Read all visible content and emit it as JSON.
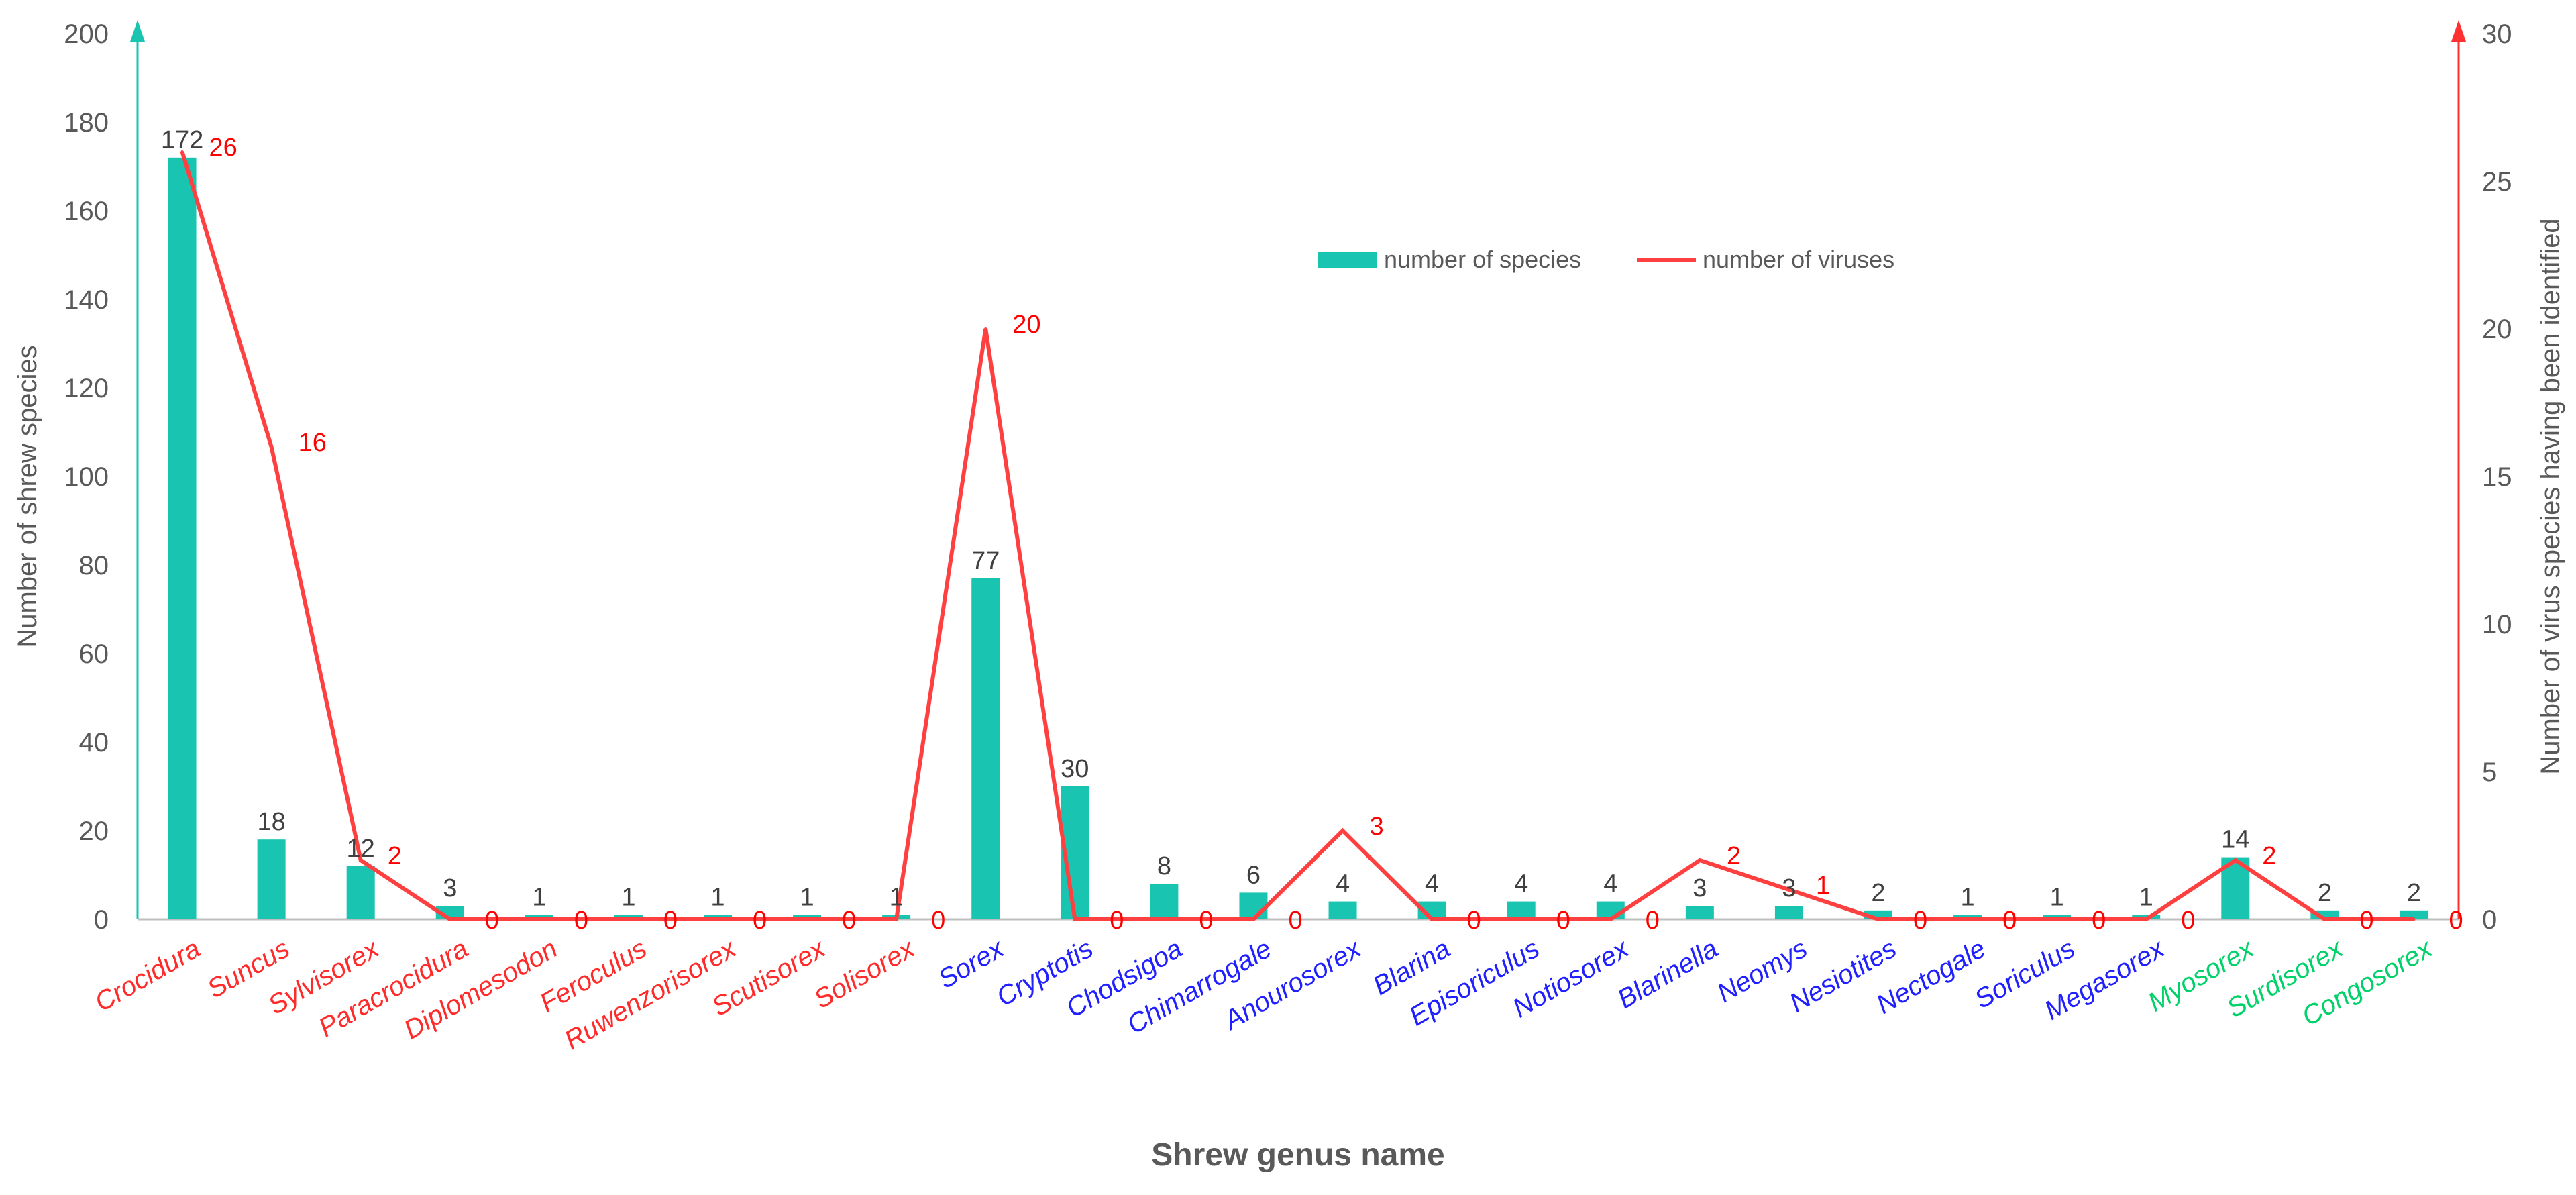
{
  "chart_data": {
    "type": "bar",
    "xlabel": "Shrew genus name",
    "ylabel": "Number of shrew species",
    "y2label": "Number of virus species having been identified",
    "ylim": [
      0,
      200
    ],
    "y2lim": [
      0,
      30
    ],
    "yticks": [
      "0",
      "20",
      "40",
      "60",
      "80",
      "100",
      "120",
      "140",
      "160",
      "180",
      "200"
    ],
    "y2ticks": [
      "0",
      "5",
      "10",
      "15",
      "20",
      "25",
      "30"
    ],
    "legend_position": "top-center",
    "colors": {
      "bars": "#19c4b0",
      "line": "#ff4040",
      "group1": "#ff2b2b",
      "group2": "#1f1fff",
      "group3": "#00d26a"
    },
    "categories": [
      "Crocidura",
      "Suncus",
      "Sylvisorex",
      "Paracrocidura",
      "Diplomesodon",
      "Feroculus",
      "Ruwenzorisorex",
      "Scutisorex",
      "Solisorex",
      "Sorex",
      "Cryptotis",
      "Chodsigoa",
      "Chimarrogale",
      "Anourosorex",
      "Blarina",
      "Episoriculus",
      "Notiosorex",
      "Blarinella",
      "Neomys",
      "Nesiotites",
      "Nectogale",
      "Soriculus",
      "Megasorex",
      "Myosorex",
      "Surdisorex",
      "Congosorex"
    ],
    "category_groups": [
      1,
      1,
      1,
      1,
      1,
      1,
      1,
      1,
      1,
      2,
      2,
      2,
      2,
      2,
      2,
      2,
      2,
      2,
      2,
      2,
      2,
      2,
      2,
      3,
      3,
      3
    ],
    "series": [
      {
        "name": "number of species",
        "type": "bar",
        "axis": "left",
        "values": [
          172,
          18,
          12,
          3,
          1,
          1,
          1,
          1,
          1,
          77,
          30,
          8,
          6,
          4,
          4,
          4,
          4,
          3,
          3,
          2,
          1,
          1,
          1,
          14,
          2,
          2
        ]
      },
      {
        "name": "number of viruses",
        "type": "line",
        "axis": "right",
        "values": [
          26,
          16,
          2,
          0,
          0,
          0,
          0,
          0,
          0,
          20,
          0,
          0,
          0,
          3,
          0,
          0,
          0,
          2,
          1,
          0,
          0,
          0,
          0,
          2,
          0,
          0
        ]
      }
    ]
  }
}
